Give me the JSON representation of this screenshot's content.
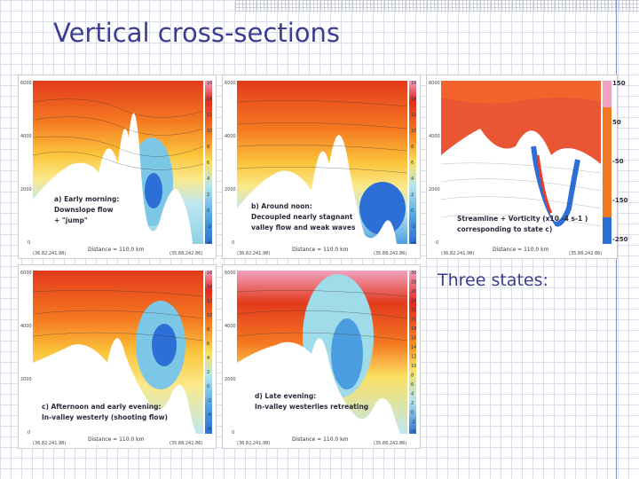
{
  "slide": {
    "title": "Vertical cross-sections",
    "summary": "Three states:"
  },
  "colors": {
    "title": "#3b3d8f",
    "warm": "#e03a1e",
    "cool": "#2c6fd6",
    "terrain": "#ffffff"
  },
  "panels": [
    {
      "id": "a",
      "caption_lines": [
        "a) Early morning:",
        "Downslope flow",
        "+ \"jump\""
      ],
      "y_ticks": [
        "6000",
        "4000",
        "2000",
        "0"
      ],
      "colorbar": [
        "16",
        "14",
        "12",
        "10",
        "8",
        "6",
        "4",
        "2",
        "0",
        "-2",
        "-4"
      ],
      "distance": "Distance =  110.0 km",
      "left_coord": "(36.82,241.98)",
      "right_coord": "(35.88,242.86)"
    },
    {
      "id": "b",
      "caption_lines": [
        "b) Around noon:",
        "Decoupled nearly stagnant",
        "valley flow and weak waves"
      ],
      "y_ticks": [
        "6000",
        "4000",
        "2000",
        "0"
      ],
      "colorbar": [
        "16",
        "14",
        "12",
        "10",
        "8",
        "6",
        "4",
        "2",
        "0",
        "-2",
        "-4"
      ],
      "distance": "Distance =  110.0 km",
      "left_coord": "(36.82,241.98)",
      "right_coord": "(35.88,242.86)"
    },
    {
      "id": "vort",
      "caption_lines": [
        "Streamline + Vorticity (x10 -4 s-1 )",
        "corresponding to state c)"
      ],
      "y_ticks": [
        "6000",
        "4000",
        "2000",
        "0"
      ],
      "colorbar": [
        "150",
        "50",
        "-50",
        "-150",
        "-250"
      ],
      "distance": "Distance =  110.0 km",
      "left_coord": "(36.82,241.98)",
      "right_coord": "(35.88,242.86)"
    },
    {
      "id": "c",
      "caption_lines": [
        "c) Afternoon and early evening:",
        "In-valley westerly (shooting flow)"
      ],
      "y_ticks": [
        "6000",
        "4000",
        "2000",
        "0"
      ],
      "colorbar": [
        "16",
        "14",
        "12",
        "10",
        "8",
        "6",
        "4",
        "2",
        "0",
        "-2",
        "-4",
        "-6"
      ],
      "distance": "Distance =  110.0 km",
      "left_coord": "(36.82,241.98)",
      "right_coord": "(35.88,242.86)"
    },
    {
      "id": "d",
      "caption_lines": [
        "d) Late evening:",
        "In-valley westerlies retreating"
      ],
      "y_ticks": [
        "6000",
        "4000",
        "2000",
        "0"
      ],
      "colorbar": [
        "30",
        "28",
        "26",
        "24",
        "22",
        "20",
        "18",
        "16",
        "14",
        "12",
        "10",
        "8",
        "6",
        "4",
        "2",
        "0",
        "-2",
        "-4"
      ],
      "distance": "Distance =  110.0 km",
      "left_coord": "(36.82,241.98)",
      "right_coord": "(35.88,242.86)"
    }
  ]
}
